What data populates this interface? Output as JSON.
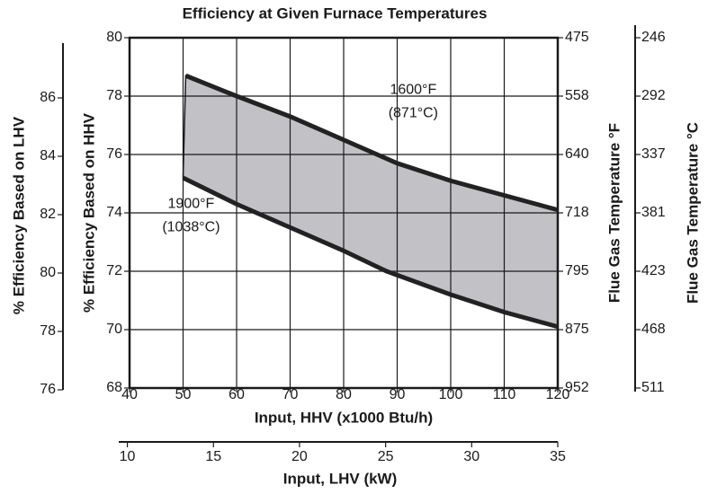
{
  "chart_data": {
    "type": "band",
    "title": "Efficiency at Given Furnace Temperatures",
    "xlabel": "Input, HHV (x1000 Btu/h)",
    "x2label": "Input, LHV (kW)",
    "ylabel": "% Efficiency Based on HHV",
    "y2label": "% Efficiency Based on LHV",
    "y3label": "Flue Gas Temperature °F",
    "y4label": "Flue Gas Temperature °C",
    "xlim": [
      40,
      120
    ],
    "xticks": [
      40,
      50,
      60,
      70,
      80,
      90,
      100,
      110,
      120
    ],
    "ylim": [
      68,
      80
    ],
    "yticks": [
      68,
      70,
      72,
      74,
      76,
      78,
      80
    ],
    "y2lim": [
      76,
      88
    ],
    "y2ticks": [
      76,
      78,
      80,
      82,
      84,
      86
    ],
    "y3ticks": [
      475,
      558,
      640,
      718,
      795,
      875,
      952
    ],
    "y4ticks": [
      246,
      292,
      337,
      381,
      423,
      468,
      511
    ],
    "x2lim": [
      9.5,
      35
    ],
    "x2ticks": [
      10,
      15,
      20,
      25,
      30,
      35
    ],
    "grid": true,
    "fill": "#c2c2c6",
    "series": [
      {
        "color": "#222222",
        "x": [
          50.5,
          60,
          70,
          80,
          90,
          100,
          110,
          120
        ],
        "values": [
          78.7,
          78.0,
          77.3,
          76.5,
          75.7,
          75.1,
          74.6,
          74.1
        ]
      },
      {
        "color": "#222222",
        "x": [
          50,
          60,
          70,
          80,
          88,
          100,
          110,
          120
        ],
        "values": [
          75.2,
          74.3,
          73.5,
          72.7,
          72.0,
          71.2,
          70.6,
          70.1
        ]
      }
    ],
    "annotations": [
      {
        "text": "1600°F",
        "x": 93,
        "y": 78.2
      },
      {
        "text": "(871°C)",
        "x": 93,
        "y": 77.4
      },
      {
        "text": "1900°F",
        "x": 51.5,
        "y": 74.3
      },
      {
        "text": "(1038°C)",
        "x": 51.5,
        "y": 73.5
      }
    ]
  }
}
